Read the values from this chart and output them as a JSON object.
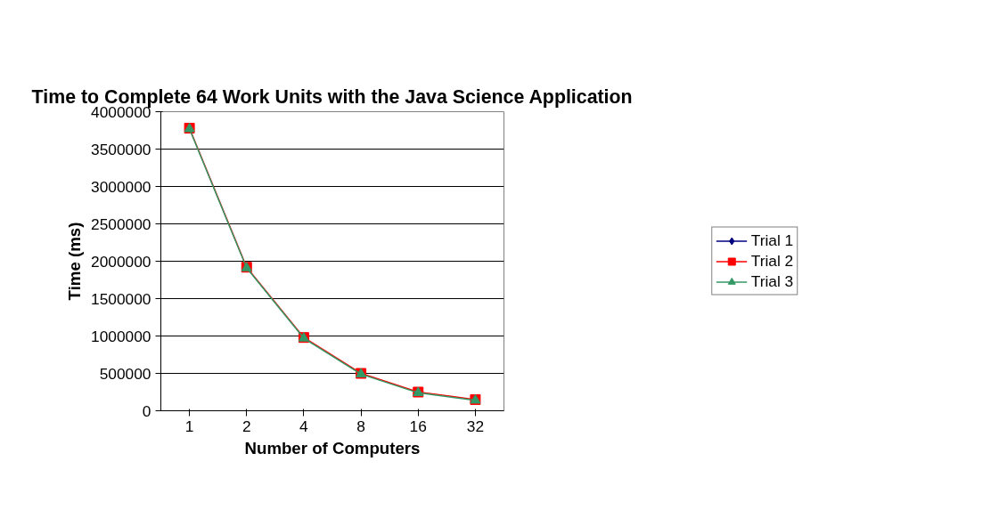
{
  "chart_data": {
    "type": "line",
    "title": "Time to Complete 64 Work Units with the Java Science Application",
    "xlabel": "Number of Computers",
    "ylabel": "Time (ms)",
    "categories": [
      "1",
      "2",
      "4",
      "8",
      "16",
      "32"
    ],
    "ylim": [
      0,
      4000000
    ],
    "yticks": [
      0,
      500000,
      1000000,
      1500000,
      2000000,
      2500000,
      3000000,
      3500000,
      4000000
    ],
    "grid": "y",
    "legend": "right",
    "series": [
      {
        "name": "Trial 1",
        "color": "#000080",
        "marker": "diamond",
        "values": [
          null,
          null,
          null,
          null,
          null,
          null
        ]
      },
      {
        "name": "Trial 2",
        "color": "#ff0000",
        "marker": "square",
        "values": [
          3780000,
          1920000,
          980000,
          500000,
          250000,
          150000
        ]
      },
      {
        "name": "Trial 3",
        "color": "#339966",
        "marker": "triangle",
        "values": [
          3770000,
          1910000,
          970000,
          490000,
          240000,
          140000
        ]
      }
    ]
  }
}
